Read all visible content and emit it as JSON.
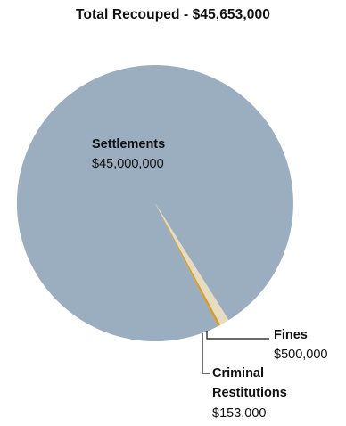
{
  "chart_data": {
    "type": "pie",
    "title": "Total Recouped - $45,653,000",
    "categories": [
      "Settlements",
      "Fines",
      "Criminal Restitutions"
    ],
    "values": [
      45000000,
      500000,
      153000
    ],
    "value_labels": [
      "$45,000,000",
      "$500,000",
      "$153,000"
    ],
    "name_lines": [
      [
        "Settlements"
      ],
      [
        "Fines"
      ],
      [
        "Criminal",
        "Restitutions"
      ]
    ],
    "colors": [
      "#9aaec0",
      "#e6dcc0",
      "#d39e2e"
    ],
    "legend": "none"
  }
}
